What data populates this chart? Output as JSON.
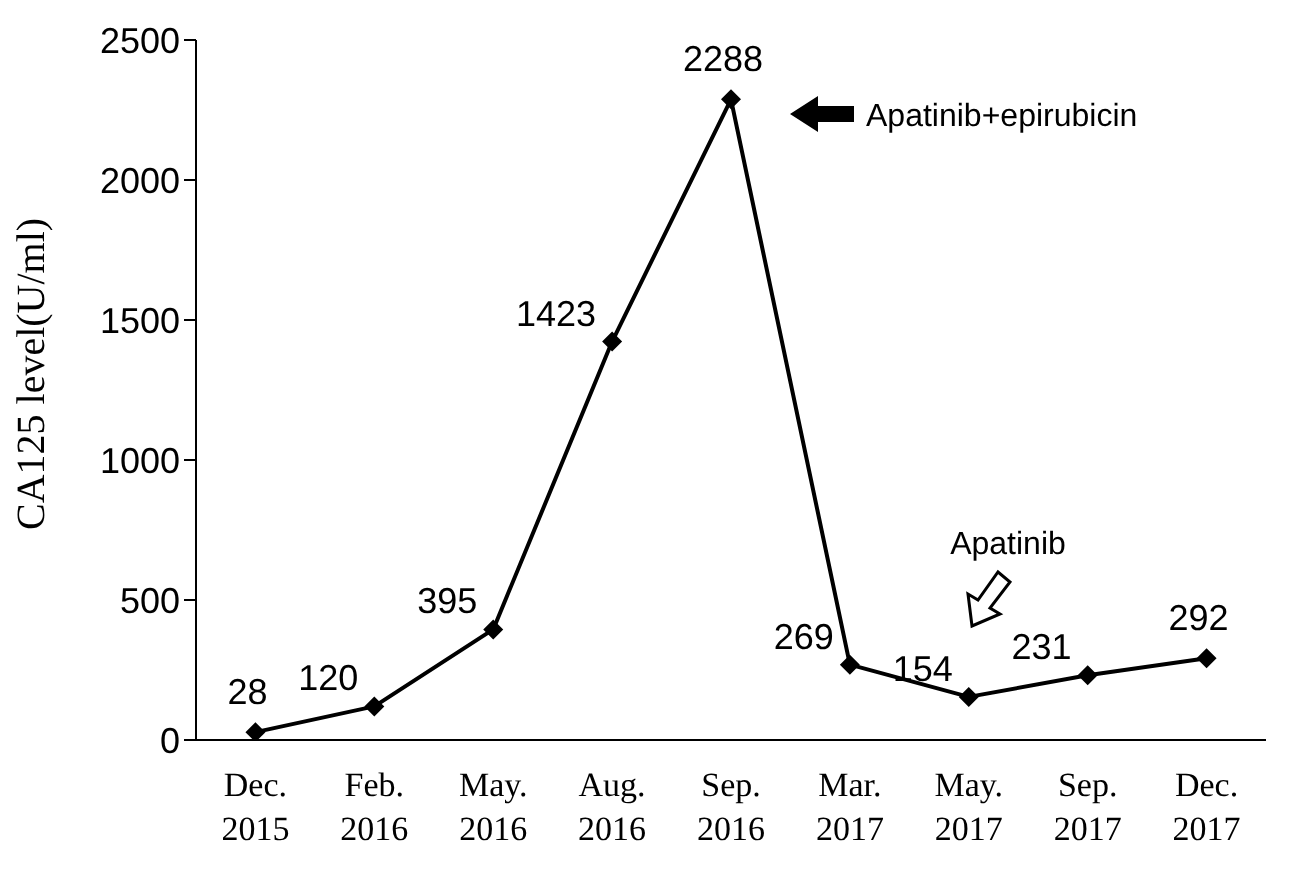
{
  "chart_data": {
    "type": "line",
    "ylabel": "CA125 level(U/ml)",
    "categories": [
      "Dec. 2015",
      "Feb. 2016",
      "May. 2016",
      "Aug. 2016",
      "Sep. 2016",
      "Mar. 2017",
      "May. 2017",
      "Sep. 2017",
      "Dec. 2017"
    ],
    "series": [
      {
        "color": "#000000",
        "values": [
          28,
          120,
          395,
          1423,
          2288,
          269,
          154,
          231,
          292
        ]
      }
    ],
    "ylim": [
      0,
      2500
    ],
    "yticks": [
      0,
      500,
      1000,
      1500,
      2000,
      2500
    ],
    "grid": false,
    "legend": false,
    "marker": "diamond",
    "line_style": "solid",
    "data_labels": true,
    "annotations": [
      "Apatinib+epirubicin",
      "Apatinib"
    ]
  }
}
